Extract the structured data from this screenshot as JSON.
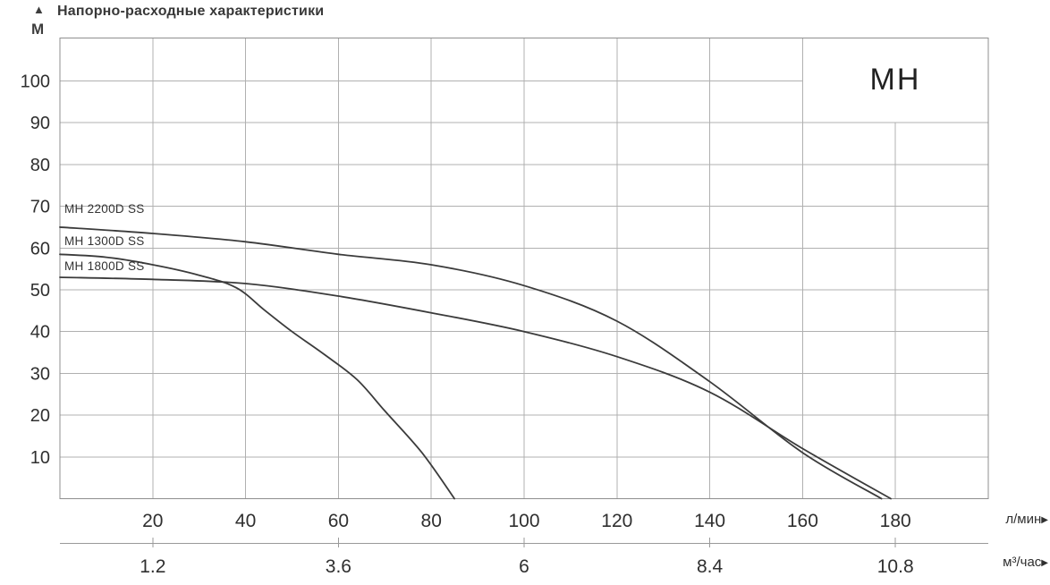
{
  "header": {
    "title": "Напорно-расходные характеристики",
    "up_arrow": "▲",
    "y_axis_unit": "М"
  },
  "series_badge": "MH",
  "axes": {
    "x_primary": {
      "unit": "л/мин",
      "arrow": "▶",
      "ticks": [
        20,
        40,
        60,
        80,
        100,
        120,
        140,
        160,
        180
      ]
    },
    "x_secondary": {
      "unit": "м³/час",
      "arrow": "▶",
      "ticks": [
        {
          "label": "1.2",
          "lpm": 20
        },
        {
          "label": "3.6",
          "lpm": 60
        },
        {
          "label": "6",
          "lpm": 100
        },
        {
          "label": "8.4",
          "lpm": 140
        },
        {
          "label": "10.8",
          "lpm": 180
        }
      ]
    },
    "y": {
      "unit": "М",
      "ticks": [
        10,
        20,
        30,
        40,
        50,
        60,
        70,
        80,
        90,
        100
      ]
    }
  },
  "colors": {
    "grid": "#b0b0b0",
    "border": "#8f8f8f",
    "axis2": "#9a9a9a",
    "curve": "#3b3b3b",
    "tick_text": "#2f2f2f"
  },
  "chart_data": {
    "type": "line",
    "title": "Напорно-расходные характеристики",
    "xlabel": "л/мин",
    "x2label": "м³/час",
    "ylabel": "М",
    "xlim": [
      0,
      200
    ],
    "ylim": [
      0,
      110
    ],
    "x_grid_step": 20,
    "y_grid_step": 10,
    "grid": "on",
    "legend_position": "labels-at-curve-start",
    "x2_conversion": "1 м³/час = 16.667 л/мин",
    "series": [
      {
        "name": "MH 2200D SS",
        "points": [
          [
            0,
            65
          ],
          [
            20,
            63.5
          ],
          [
            40,
            61.5
          ],
          [
            60,
            58.5
          ],
          [
            80,
            56
          ],
          [
            100,
            51
          ],
          [
            120,
            42.5
          ],
          [
            140,
            28
          ],
          [
            160,
            11
          ],
          [
            177,
            0
          ]
        ]
      },
      {
        "name": "MH 1300D SS",
        "points": [
          [
            0,
            58.5
          ],
          [
            10,
            57.8
          ],
          [
            20,
            56
          ],
          [
            30,
            53.5
          ],
          [
            38,
            50.5
          ],
          [
            44,
            45.2
          ],
          [
            50,
            40
          ],
          [
            57,
            34.5
          ],
          [
            64,
            28.5
          ],
          [
            70,
            21
          ],
          [
            78,
            11
          ],
          [
            85,
            0
          ]
        ]
      },
      {
        "name": "MH 1800D SS",
        "points": [
          [
            0,
            53
          ],
          [
            20,
            52.5
          ],
          [
            40,
            51.5
          ],
          [
            60,
            48.5
          ],
          [
            80,
            44.5
          ],
          [
            100,
            40
          ],
          [
            120,
            34
          ],
          [
            140,
            25.5
          ],
          [
            160,
            12
          ],
          [
            179,
            0
          ]
        ]
      }
    ]
  }
}
